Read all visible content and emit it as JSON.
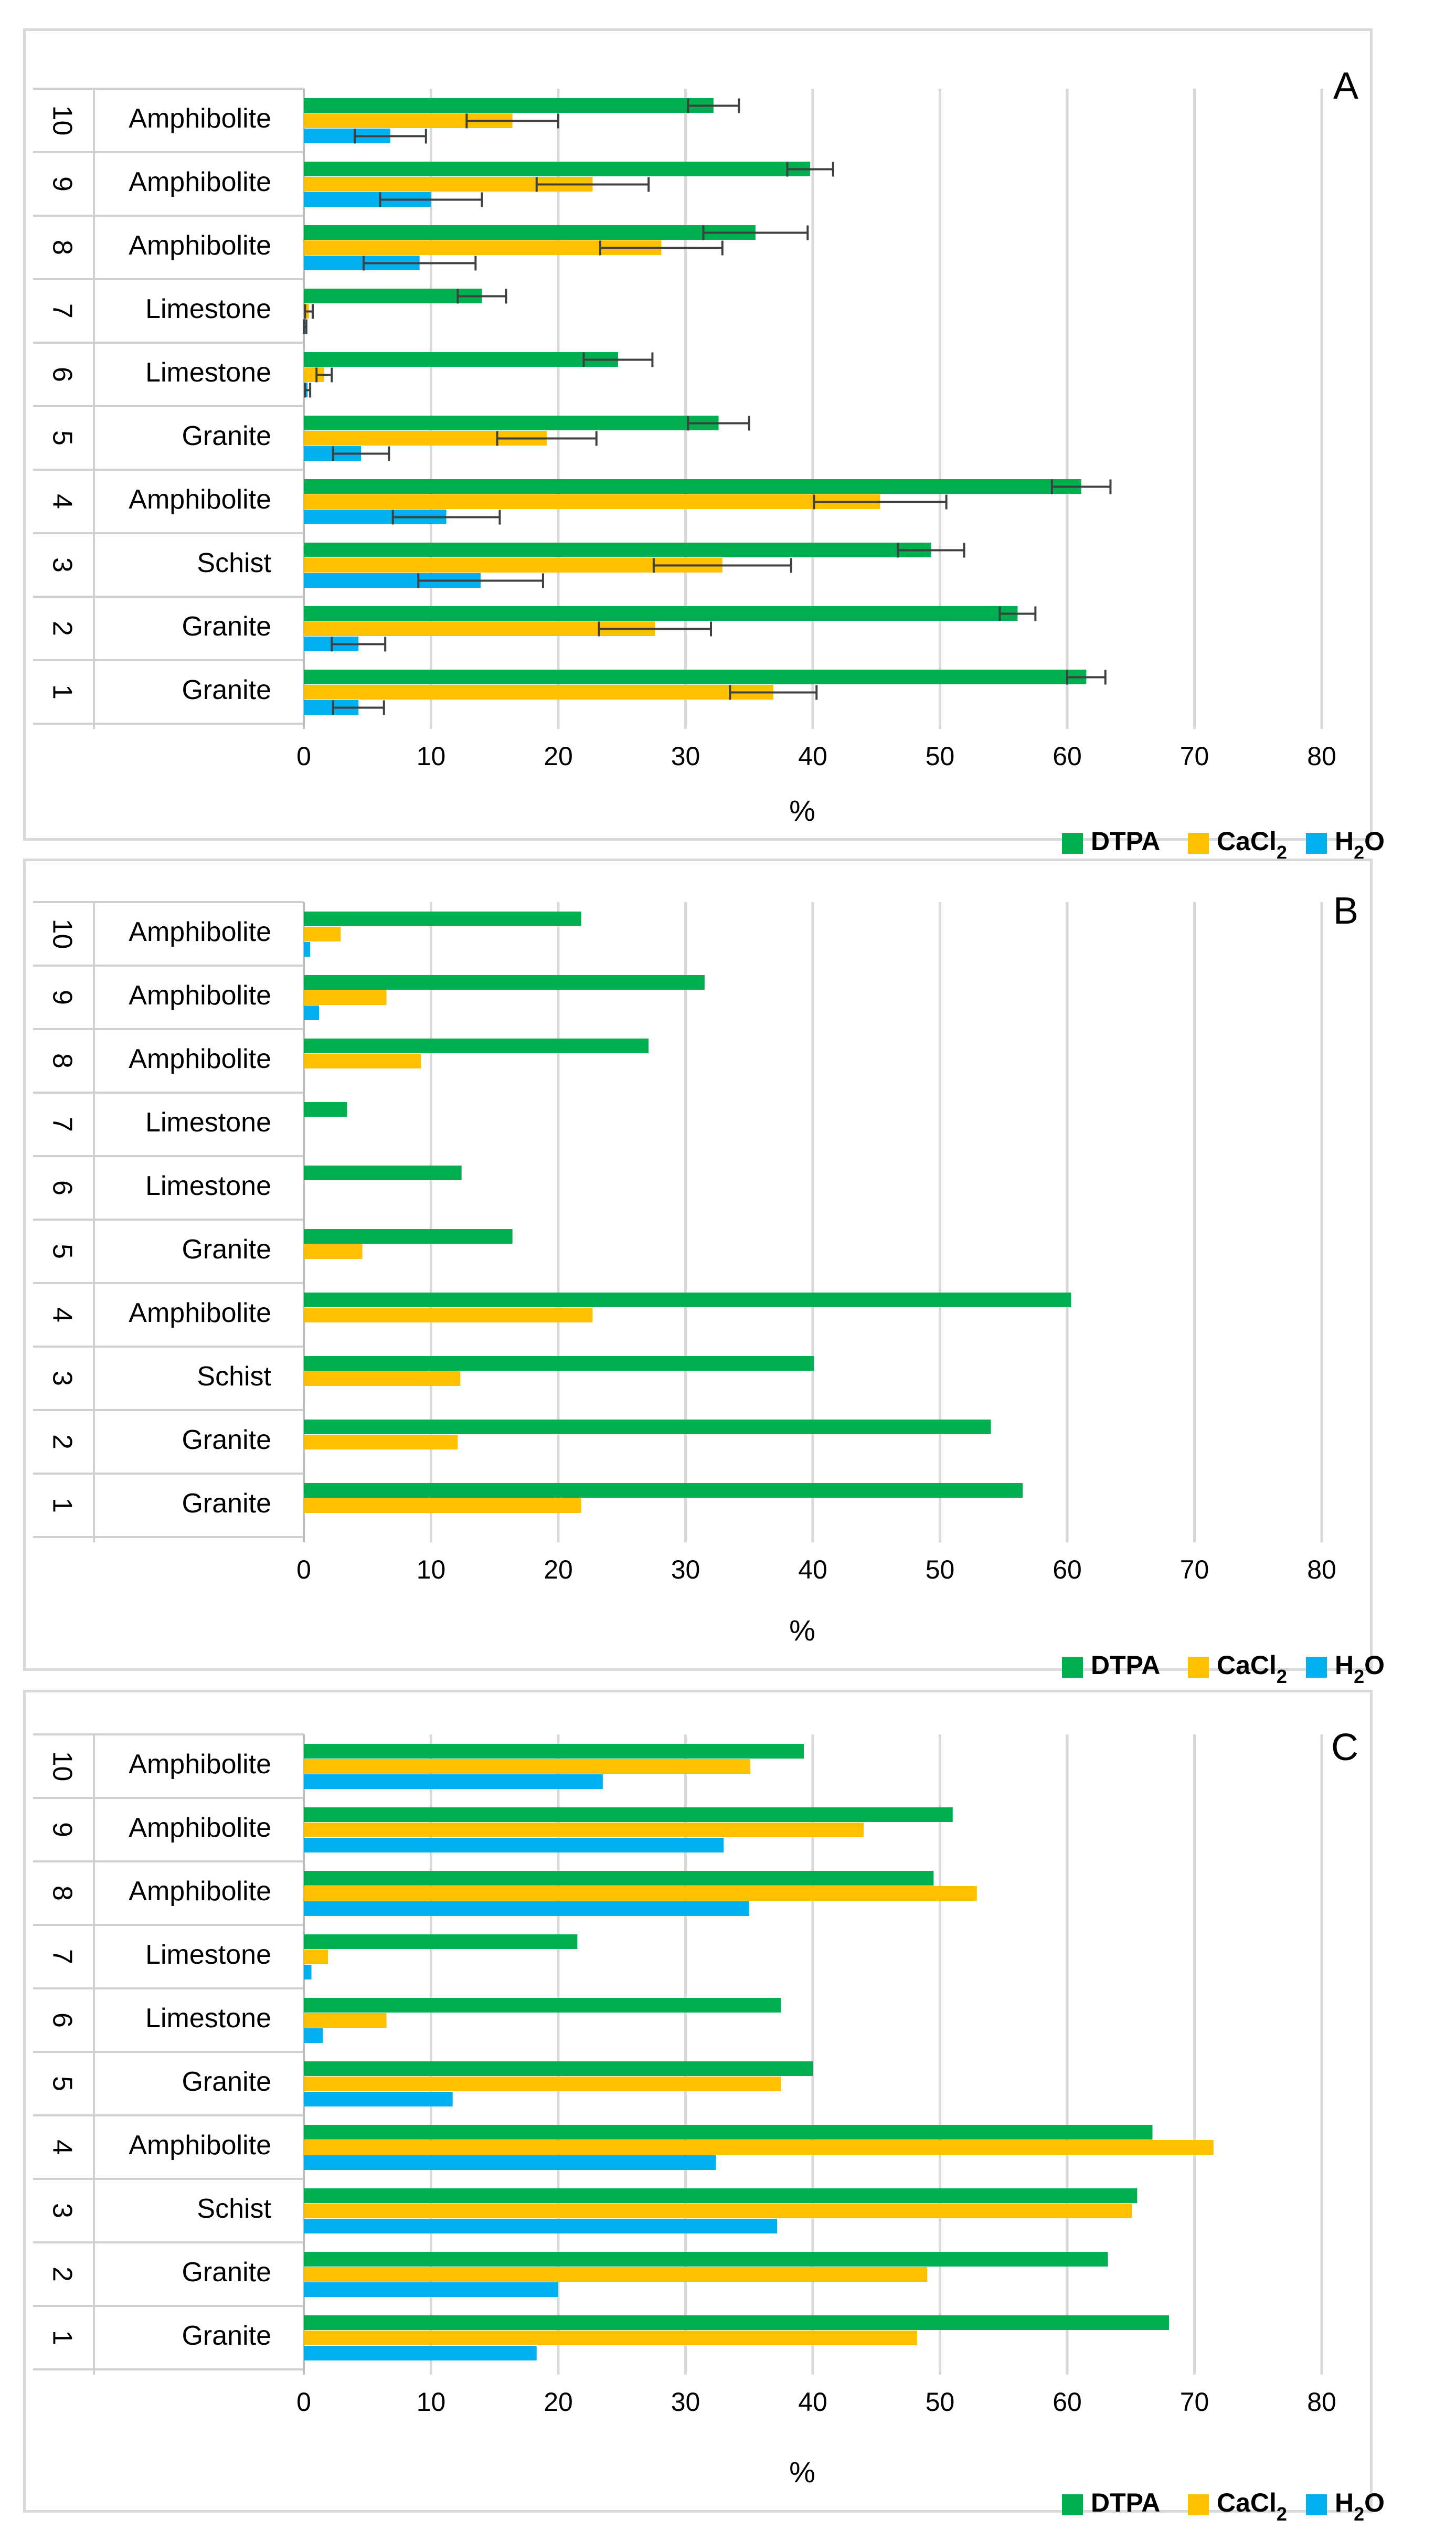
{
  "chart_data": [
    {
      "type": "bar",
      "orientation": "horizontal",
      "panel_label": "A",
      "xlabel": "%",
      "xlim": [
        0,
        80
      ],
      "xticks": [
        "0",
        "10",
        "20",
        "30",
        "40",
        "50",
        "60",
        "70",
        "80"
      ],
      "categories": [
        {
          "number": "10",
          "rock": "Amphibolite"
        },
        {
          "number": "9",
          "rock": "Amphibolite"
        },
        {
          "number": "8",
          "rock": "Amphibolite"
        },
        {
          "number": "7",
          "rock": "Limestone"
        },
        {
          "number": "6",
          "rock": "Limestone"
        },
        {
          "number": "5",
          "rock": "Granite"
        },
        {
          "number": "4",
          "rock": "Amphibolite"
        },
        {
          "number": "3",
          "rock": "Schist"
        },
        {
          "number": "2",
          "rock": "Granite"
        },
        {
          "number": "1",
          "rock": "Granite"
        }
      ],
      "series": [
        {
          "name": "DTPA",
          "color": "#00b050",
          "values": [
            32.2,
            39.8,
            35.5,
            14.0,
            24.7,
            32.6,
            61.1,
            49.3,
            56.1,
            61.5
          ],
          "errors": [
            2.0,
            1.8,
            4.1,
            1.9,
            2.7,
            2.4,
            2.3,
            2.6,
            1.4,
            1.5
          ]
        },
        {
          "name": "CaCl2",
          "color": "#ffc000",
          "values": [
            16.4,
            22.7,
            28.1,
            0.4,
            1.6,
            19.1,
            45.3,
            32.9,
            27.6,
            36.9
          ],
          "errors": [
            3.6,
            4.4,
            4.8,
            0.3,
            0.6,
            3.9,
            5.2,
            5.4,
            4.4,
            3.4
          ]
        },
        {
          "name": "H2O",
          "color": "#00b0f0",
          "values": [
            6.8,
            10.0,
            9.1,
            0.1,
            0.3,
            4.5,
            11.2,
            13.9,
            4.3,
            4.3
          ],
          "errors": [
            2.8,
            4.0,
            4.4,
            0.1,
            0.2,
            2.2,
            4.2,
            4.9,
            2.1,
            2.0
          ]
        }
      ],
      "legend_position": "bottom-right"
    },
    {
      "type": "bar",
      "orientation": "horizontal",
      "panel_label": "B",
      "xlabel": "%",
      "xlim": [
        0,
        80
      ],
      "xticks": [
        "0",
        "10",
        "20",
        "30",
        "40",
        "50",
        "60",
        "70",
        "80"
      ],
      "categories": [
        {
          "number": "10",
          "rock": "Amphibolite"
        },
        {
          "number": "9",
          "rock": "Amphibolite"
        },
        {
          "number": "8",
          "rock": "Amphibolite"
        },
        {
          "number": "7",
          "rock": "Limestone"
        },
        {
          "number": "6",
          "rock": "Limestone"
        },
        {
          "number": "5",
          "rock": "Granite"
        },
        {
          "number": "4",
          "rock": "Amphibolite"
        },
        {
          "number": "3",
          "rock": "Schist"
        },
        {
          "number": "2",
          "rock": "Granite"
        },
        {
          "number": "1",
          "rock": "Granite"
        }
      ],
      "series": [
        {
          "name": "DTPA",
          "color": "#00b050",
          "values": [
            21.8,
            31.5,
            27.1,
            3.4,
            12.4,
            16.4,
            60.3,
            40.1,
            54.0,
            56.5
          ]
        },
        {
          "name": "CaCl2",
          "color": "#ffc000",
          "values": [
            2.9,
            6.5,
            9.2,
            0,
            0,
            4.6,
            22.7,
            12.3,
            12.1,
            21.8
          ]
        },
        {
          "name": "H2O",
          "color": "#00b0f0",
          "values": [
            0.5,
            1.2,
            0,
            0,
            0,
            0,
            0,
            0,
            0,
            0
          ]
        }
      ],
      "legend_position": "bottom-right"
    },
    {
      "type": "bar",
      "orientation": "horizontal",
      "panel_label": "C",
      "xlabel": "%",
      "xlim": [
        0,
        80
      ],
      "xticks": [
        "0",
        "10",
        "20",
        "30",
        "40",
        "50",
        "60",
        "70",
        "80"
      ],
      "categories": [
        {
          "number": "10",
          "rock": "Amphibolite"
        },
        {
          "number": "9",
          "rock": "Amphibolite"
        },
        {
          "number": "8",
          "rock": "Amphibolite"
        },
        {
          "number": "7",
          "rock": "Limestone"
        },
        {
          "number": "6",
          "rock": "Limestone"
        },
        {
          "number": "5",
          "rock": "Granite"
        },
        {
          "number": "4",
          "rock": "Amphibolite"
        },
        {
          "number": "3",
          "rock": "Schist"
        },
        {
          "number": "2",
          "rock": "Granite"
        },
        {
          "number": "1",
          "rock": "Granite"
        }
      ],
      "series": [
        {
          "name": "DTPA",
          "color": "#00b050",
          "values": [
            39.3,
            51.0,
            49.5,
            21.5,
            37.5,
            40.0,
            66.7,
            65.5,
            63.2,
            68.0
          ]
        },
        {
          "name": "CaCl2",
          "color": "#ffc000",
          "values": [
            35.1,
            44.0,
            52.9,
            1.9,
            6.5,
            37.5,
            71.5,
            65.1,
            49.0,
            48.2
          ]
        },
        {
          "name": "H2O",
          "color": "#00b0f0",
          "values": [
            23.5,
            33.0,
            35.0,
            0.6,
            1.5,
            11.7,
            32.4,
            37.2,
            20.0,
            18.3
          ]
        }
      ],
      "legend_position": "bottom-right"
    }
  ],
  "legend": {
    "dtpa": "DTPA",
    "cacl2_base": "CaCl",
    "cacl2_sub": "2",
    "h2o_h": "H",
    "h2o_sub": "2",
    "h2o_o": "O"
  }
}
